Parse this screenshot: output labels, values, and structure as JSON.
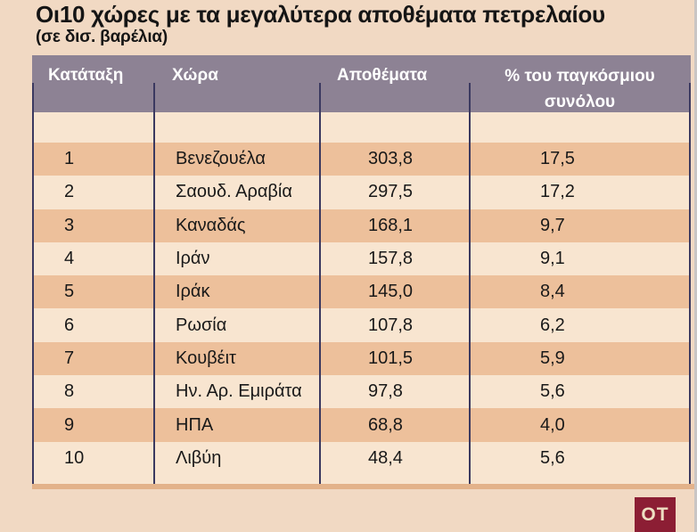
{
  "title": "Οι10 χώρες με τα μεγαλύτερα αποθέματα πετρελαίου",
  "subtitle": "(σε δισ. βαρέλια)",
  "table": {
    "headers": {
      "rank": "Κατάταξη",
      "country": "Χώρα",
      "reserves": "Αποθέματα",
      "pct": "% του παγκόσμιου συνόλου"
    },
    "rows": [
      {
        "rank": "1",
        "country": "Βενεζουέλα",
        "reserves": "303,8",
        "pct": "17,5"
      },
      {
        "rank": "2",
        "country": "Σαουδ. Αραβία",
        "reserves": "297,5",
        "pct": "17,2"
      },
      {
        "rank": "3",
        "country": "Καναδάς",
        "reserves": "168,1",
        "pct": "9,7"
      },
      {
        "rank": "4",
        "country": "Ιράν",
        "reserves": "157,8",
        "pct": "9,1"
      },
      {
        "rank": "5",
        "country": "Ιράκ",
        "reserves": "145,0",
        "pct": "8,4"
      },
      {
        "rank": "6",
        "country": "Ρωσία",
        "reserves": "107,8",
        "pct": "6,2"
      },
      {
        "rank": "7",
        "country": "Κουβέιτ",
        "reserves": "101,5",
        "pct": "5,9"
      },
      {
        "rank": "8",
        "country": "Ην. Αρ. Εμιράτα",
        "reserves": "97,8",
        "pct": "5,6"
      },
      {
        "rank": "9",
        "country": "ΗΠΑ",
        "reserves": "68,8",
        "pct": "4,0"
      },
      {
        "rank": "10",
        "country": "Λιβύη",
        "reserves": "48,4",
        "pct": "5,6"
      }
    ]
  },
  "logo": {
    "text": "OT"
  },
  "colors": {
    "page_background": "#f1d9c3",
    "header_background": "#8d8294",
    "row_dark": "#edc09b",
    "row_light": "#f8e5d0",
    "grid_line": "#3b3960",
    "bottom_band": "#e3b28a",
    "logo_background": "#8c1e34",
    "logo_text": "#eedfc2",
    "text": "#191919"
  },
  "chart_data": {
    "type": "table",
    "title": "Οι10 χώρες με τα μεγαλύτερα αποθέματα πετρελαίου",
    "subtitle": "(σε δισ. βαρέλια)",
    "columns": [
      "Κατάταξη",
      "Χώρα",
      "Αποθέματα",
      "% του παγκόσμιου συνόλου"
    ],
    "rows": [
      [
        1,
        "Βενεζουέλα",
        303.8,
        17.5
      ],
      [
        2,
        "Σαουδ. Αραβία",
        297.5,
        17.2
      ],
      [
        3,
        "Καναδάς",
        168.1,
        9.7
      ],
      [
        4,
        "Ιράν",
        157.8,
        9.1
      ],
      [
        5,
        "Ιράκ",
        145.0,
        8.4
      ],
      [
        6,
        "Ρωσία",
        107.8,
        6.2
      ],
      [
        7,
        "Κουβέιτ",
        101.5,
        5.9
      ],
      [
        8,
        "Ην. Αρ. Εμιράτα",
        97.8,
        5.6
      ],
      [
        9,
        "ΗΠΑ",
        68.8,
        4.0
      ],
      [
        10,
        "Λιβύη",
        48.4,
        5.6
      ]
    ],
    "units": "billion barrels",
    "notes": "decimal comma formatting as rendered"
  }
}
